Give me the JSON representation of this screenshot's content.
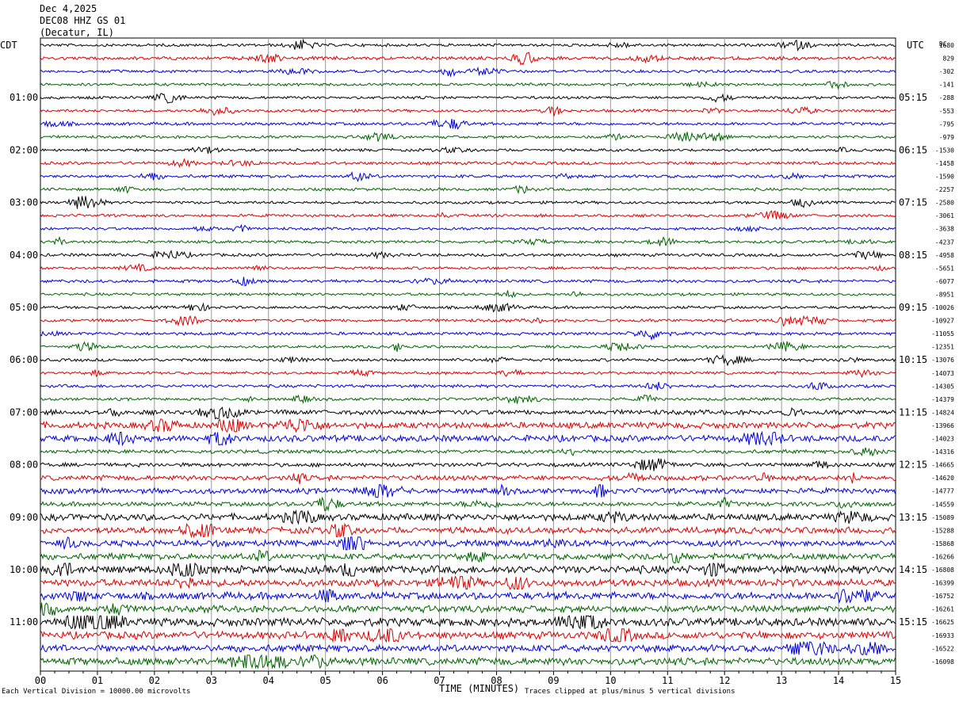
{
  "header": {
    "date": "Dec 4,2025",
    "station": "DEC08 HHZ GS 01",
    "location": "(Decatur, IL)"
  },
  "left_tz": "CDT",
  "right_tz": "UTC",
  "dc_label": "DC",
  "footer": {
    "scale_note": "Each Vertical Division = 10000.00 microvolts",
    "clip_note": "Traces clipped at plus/minus 5 vertical divisions"
  },
  "chart_data": {
    "type": "line",
    "title": "",
    "xlabel": "TIME (MINUTES)",
    "ylabel": "",
    "xlim": [
      0,
      15
    ],
    "x_ticks": [
      "00",
      "01",
      "02",
      "03",
      "04",
      "05",
      "06",
      "07",
      "08",
      "09",
      "10",
      "11",
      "12",
      "13",
      "14",
      "15"
    ],
    "trace_colors": [
      "#000000",
      "#dd0000",
      "#0000dd",
      "#006400"
    ],
    "left_hour_labels": [
      "01:00",
      "02:00",
      "03:00",
      "04:00",
      "05:00",
      "06:00",
      "07:00",
      "08:00",
      "09:00",
      "10:00",
      "11:00"
    ],
    "right_hour_labels": [
      "05:15",
      "06:15",
      "07:15",
      "08:15",
      "09:15",
      "10:15",
      "11:15",
      "12:15",
      "13:15",
      "14:15",
      "15:15"
    ],
    "dc_offsets": [
      "1680",
      "829",
      "-302",
      "-141",
      "-288",
      "-553",
      "-795",
      "-979",
      "-1530",
      "-1458",
      "-1590",
      "-2257",
      "-2580",
      "-3061",
      "-3638",
      "-4237",
      "-4958",
      "-5651",
      "-6077",
      "-8951",
      "-10026",
      "-10927",
      "-11055",
      "-12351",
      "-13076",
      "-14073",
      "-14305",
      "-14379",
      "-14824",
      "-13966",
      "-14023",
      "-14316",
      "-14665",
      "-14620",
      "-14777",
      "-14559",
      "-15089",
      "-15288",
      "-15868",
      "-16266",
      "-16808",
      "-16399",
      "-16752",
      "-16261",
      "-16625",
      "-16933",
      "-16522",
      "-16098"
    ],
    "trace_amplitude": [
      1.0,
      1.2,
      1.0,
      1.0,
      1.0,
      1.0,
      1.1,
      1.0,
      1.0,
      1.1,
      1.1,
      1.0,
      1.0,
      1.0,
      1.0,
      1.0,
      1.1,
      1.0,
      1.1,
      1.0,
      1.0,
      1.1,
      1.1,
      1.0,
      1.1,
      1.0,
      1.1,
      1.0,
      1.7,
      2.2,
      2.3,
      1.3,
      1.4,
      1.8,
      1.9,
      1.6,
      2.4,
      2.3,
      2.2,
      2.2,
      2.8,
      2.6,
      2.6,
      2.4,
      2.9,
      2.6,
      2.5,
      2.6
    ]
  }
}
